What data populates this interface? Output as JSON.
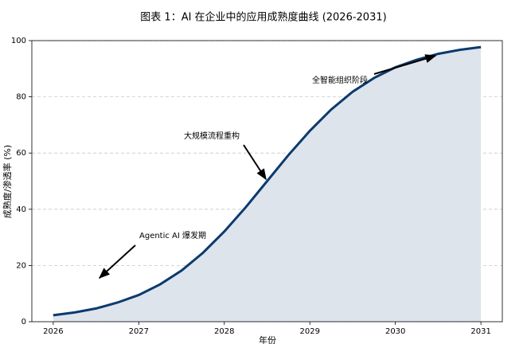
{
  "chart_data": {
    "type": "area-line",
    "title": "图表 1：AI 在企业中的应用成熟度曲线 (2026-2031)",
    "x_label": "年份",
    "y_label": "成熟度/渗透率 (%)",
    "x": [
      2026,
      2026.25,
      2026.5,
      2026.75,
      2027,
      2027.25,
      2027.5,
      2027.75,
      2028,
      2028.25,
      2028.5,
      2028.75,
      2029,
      2029.25,
      2029.5,
      2029.75,
      2030,
      2030.25,
      2030.5,
      2030.75,
      2031
    ],
    "series": [
      {
        "color": "#0b3a6e",
        "fill": "#dde4ec",
        "values": [
          2.3,
          3.3,
          4.7,
          6.8,
          9.5,
          13.3,
          18.2,
          24.5,
          32.1,
          40.7,
          50,
          59.3,
          67.9,
          75.5,
          81.8,
          86.7,
          90.5,
          93.2,
          95.3,
          96.7,
          97.7
        ]
      }
    ],
    "xlim": [
      2025.75,
      2031.25
    ],
    "ylim": [
      0,
      100
    ],
    "xticks": [
      2026,
      2027,
      2028,
      2029,
      2030,
      2031
    ],
    "yticks": [
      0,
      20,
      40,
      60,
      80,
      100
    ],
    "grid": true,
    "annotations": [
      "Agentic AI 爆发期",
      "大规模流程重构",
      "全智能组织阶段"
    ]
  }
}
